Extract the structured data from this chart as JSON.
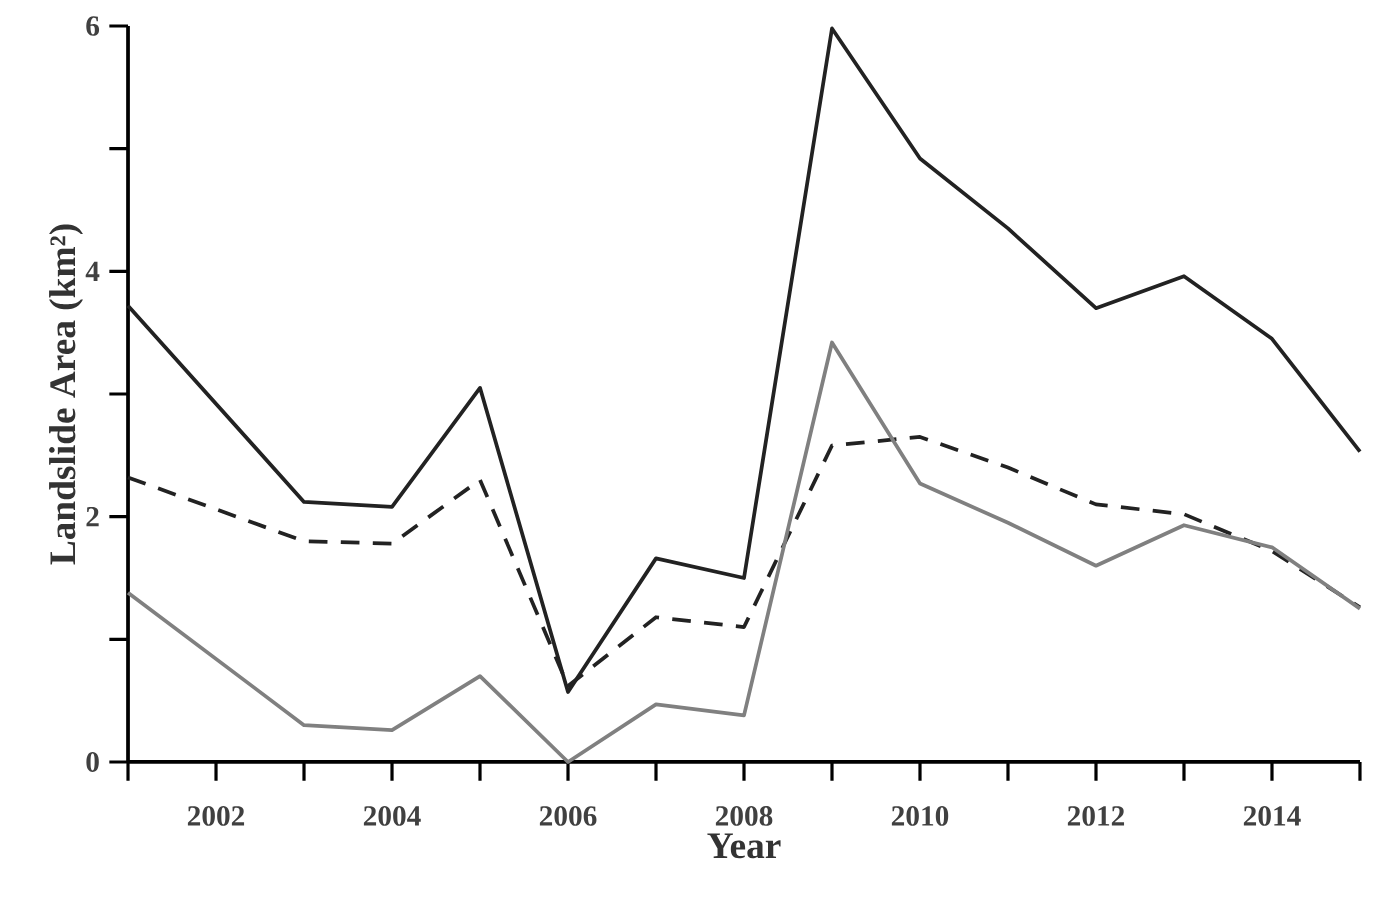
{
  "chart_data": {
    "type": "line",
    "xlabel": "Year",
    "ylabel": "Landslide Area (km²)",
    "x": [
      2001,
      2003,
      2004,
      2005,
      2006,
      2007,
      2008,
      2009,
      2010,
      2011,
      2012,
      2013,
      2014,
      2015
    ],
    "series": [
      {
        "color": "#222222",
        "line_style": "solid",
        "values": [
          3.72,
          2.12,
          2.08,
          3.05,
          0.57,
          1.66,
          1.5,
          5.98,
          4.92,
          4.35,
          3.7,
          3.96,
          3.45,
          2.53
        ]
      },
      {
        "color": "#222222",
        "line_style": "dashed",
        "values": [
          2.32,
          1.8,
          1.78,
          2.3,
          0.62,
          1.18,
          1.1,
          2.58,
          2.65,
          2.4,
          2.1,
          2.02,
          1.72,
          1.26
        ]
      },
      {
        "color": "#808080",
        "line_style": "solid",
        "values": [
          1.38,
          0.3,
          0.26,
          0.7,
          0.0,
          0.47,
          0.38,
          3.42,
          2.27,
          1.95,
          1.6,
          1.93,
          1.75,
          1.25
        ]
      }
    ],
    "xlim": [
      2001,
      2015
    ],
    "ylim": [
      0,
      6
    ],
    "xticks": [
      {
        "value": 2001,
        "label": null
      },
      2002,
      {
        "value": 2003,
        "label": null
      },
      2004,
      {
        "value": 2005,
        "label": null
      },
      2006,
      {
        "value": 2007,
        "label": null
      },
      2008,
      {
        "value": 2009,
        "label": null
      },
      2010,
      {
        "value": 2011,
        "label": null
      },
      2012,
      {
        "value": 2013,
        "label": null
      },
      2014,
      {
        "value": 2015,
        "label": null
      }
    ],
    "yticks": [
      0,
      {
        "value": 1,
        "label": null
      },
      2,
      {
        "value": 3,
        "label": null
      },
      4,
      {
        "value": 5,
        "label": null
      },
      6
    ],
    "marker": "none"
  }
}
